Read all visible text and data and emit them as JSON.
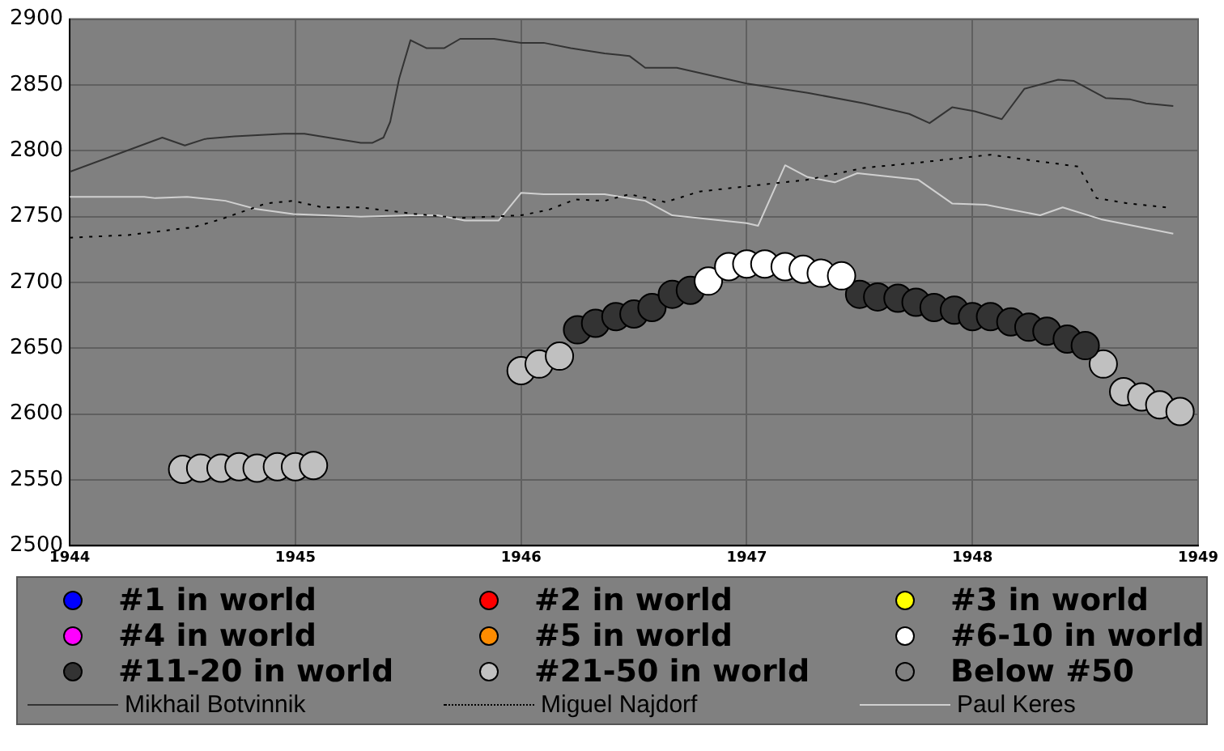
{
  "chart_data": {
    "type": "scatter",
    "marker": "circle",
    "grid": true,
    "legend": "bottom",
    "xlim": [
      1944,
      1949
    ],
    "xticks": [
      1944,
      1945,
      1946,
      1947,
      1948,
      1949
    ],
    "ylim": [
      2500,
      2900
    ],
    "yticks": [
      2500,
      2550,
      2600,
      2650,
      2700,
      2750,
      2800,
      2850,
      2900
    ],
    "series": [
      {
        "name": "#1 in world",
        "color": "#0000ff"
      },
      {
        "name": "#2 in world",
        "color": "#ff0000"
      },
      {
        "name": "#3 in world",
        "color": "#ffff00"
      },
      {
        "name": "#4 in world",
        "color": "#ff00ff"
      },
      {
        "name": "#5 in world",
        "color": "#ff8c00"
      },
      {
        "name": "#6-10 in world",
        "color": "#ffffff",
        "x": [
          1946.83,
          1946.92,
          1947.0,
          1947.08,
          1947.17,
          1947.25,
          1947.33,
          1947.42
        ],
        "values": [
          2701,
          2712,
          2714,
          2714,
          2712,
          2710,
          2707,
          2705
        ]
      },
      {
        "name": "#11-20 in world",
        "color": "#333333",
        "x": [
          1946.25,
          1946.33,
          1946.42,
          1946.5,
          1946.58,
          1946.67,
          1946.75,
          1947.5,
          1947.58,
          1947.67,
          1947.75,
          1947.83,
          1947.92,
          1948.0,
          1948.08,
          1948.17,
          1948.25,
          1948.33,
          1948.42,
          1948.5
        ],
        "values": [
          2664,
          2669,
          2674,
          2676,
          2681,
          2691,
          2694,
          2691,
          2689,
          2688,
          2685,
          2681,
          2679,
          2674,
          2674,
          2670,
          2666,
          2663,
          2657,
          2652
        ]
      },
      {
        "name": "#21-50 in world",
        "color": "#c0c0c0",
        "x": [
          1944.5,
          1944.58,
          1944.67,
          1944.75,
          1944.83,
          1944.92,
          1945.0,
          1945.08,
          1946.0,
          1946.08,
          1946.17,
          1948.58,
          1948.67,
          1948.75,
          1948.83,
          1948.92
        ],
        "values": [
          2558,
          2559,
          2559,
          2560,
          2559,
          2560,
          2560,
          2561,
          2633,
          2638,
          2644,
          2638,
          2617,
          2613,
          2607,
          2602
        ]
      },
      {
        "name": "Below #50",
        "color": "#808080"
      },
      {
        "name": "Mikhail Botvinnik",
        "type": "line",
        "marker": "none",
        "line_style": "solid",
        "color": "#333333",
        "x": [
          1944.0,
          1944.41,
          1944.51,
          1944.6,
          1944.73,
          1944.95,
          1945.04,
          1945.29,
          1945.34,
          1945.39,
          1945.42,
          1945.46,
          1945.51,
          1945.58,
          1945.66,
          1945.73,
          1945.88,
          1946.0,
          1946.1,
          1946.22,
          1946.37,
          1946.48,
          1946.55,
          1946.69,
          1947.0,
          1947.27,
          1947.52,
          1947.72,
          1947.81,
          1947.91,
          1948.01,
          1948.13,
          1948.23,
          1948.38,
          1948.45,
          1948.59,
          1948.7,
          1948.77,
          1948.89
        ],
        "values": [
          2784,
          2810,
          2804,
          2809,
          2811,
          2813,
          2813,
          2806,
          2806,
          2810,
          2822,
          2855,
          2884,
          2878,
          2878,
          2885,
          2885,
          2882,
          2882,
          2878,
          2874,
          2872,
          2863,
          2863,
          2851,
          2844,
          2836,
          2828,
          2821,
          2833,
          2830,
          2824,
          2847,
          2854,
          2853,
          2840,
          2839,
          2836,
          2834
        ]
      },
      {
        "name": "Miguel Najdorf",
        "type": "line",
        "marker": "none",
        "line_style": "dotted",
        "color": "#000000",
        "x": [
          1944.0,
          1944.26,
          1944.55,
          1944.67,
          1944.87,
          1944.99,
          1945.12,
          1945.29,
          1945.53,
          1945.73,
          1946.0,
          1946.12,
          1946.24,
          1946.37,
          1946.48,
          1946.64,
          1946.79,
          1947.0,
          1947.27,
          1947.52,
          1947.76,
          1948.08,
          1948.25,
          1948.47,
          1948.55,
          1948.69,
          1948.86
        ],
        "values": [
          2734,
          2736,
          2742,
          2748,
          2760,
          2762,
          2757,
          2757,
          2752,
          2749,
          2751,
          2755,
          2763,
          2762,
          2767,
          2761,
          2769,
          2773,
          2778,
          2787,
          2791,
          2797,
          2793,
          2788,
          2764,
          2760,
          2757
        ]
      },
      {
        "name": "Paul Keres",
        "type": "line",
        "marker": "none",
        "line_style": "solid",
        "color": "#d0d0d0",
        "x": [
          1944.0,
          1944.33,
          1944.38,
          1944.52,
          1944.69,
          1944.82,
          1944.99,
          1945.29,
          1945.51,
          1945.63,
          1945.75,
          1945.9,
          1946.0,
          1946.1,
          1946.37,
          1946.55,
          1946.67,
          1947.0,
          1947.05,
          1947.17,
          1947.27,
          1947.39,
          1947.49,
          1947.76,
          1947.91,
          1948.06,
          1948.3,
          1948.4,
          1948.57,
          1948.89
        ],
        "values": [
          2765,
          2765,
          2764,
          2765,
          2762,
          2756,
          2752,
          2750,
          2751,
          2751,
          2747,
          2747,
          2768,
          2767,
          2767,
          2762,
          2751,
          2745,
          2743,
          2789,
          2780,
          2776,
          2783,
          2778,
          2760,
          2759,
          2751,
          2757,
          2748,
          2737
        ]
      }
    ]
  }
}
